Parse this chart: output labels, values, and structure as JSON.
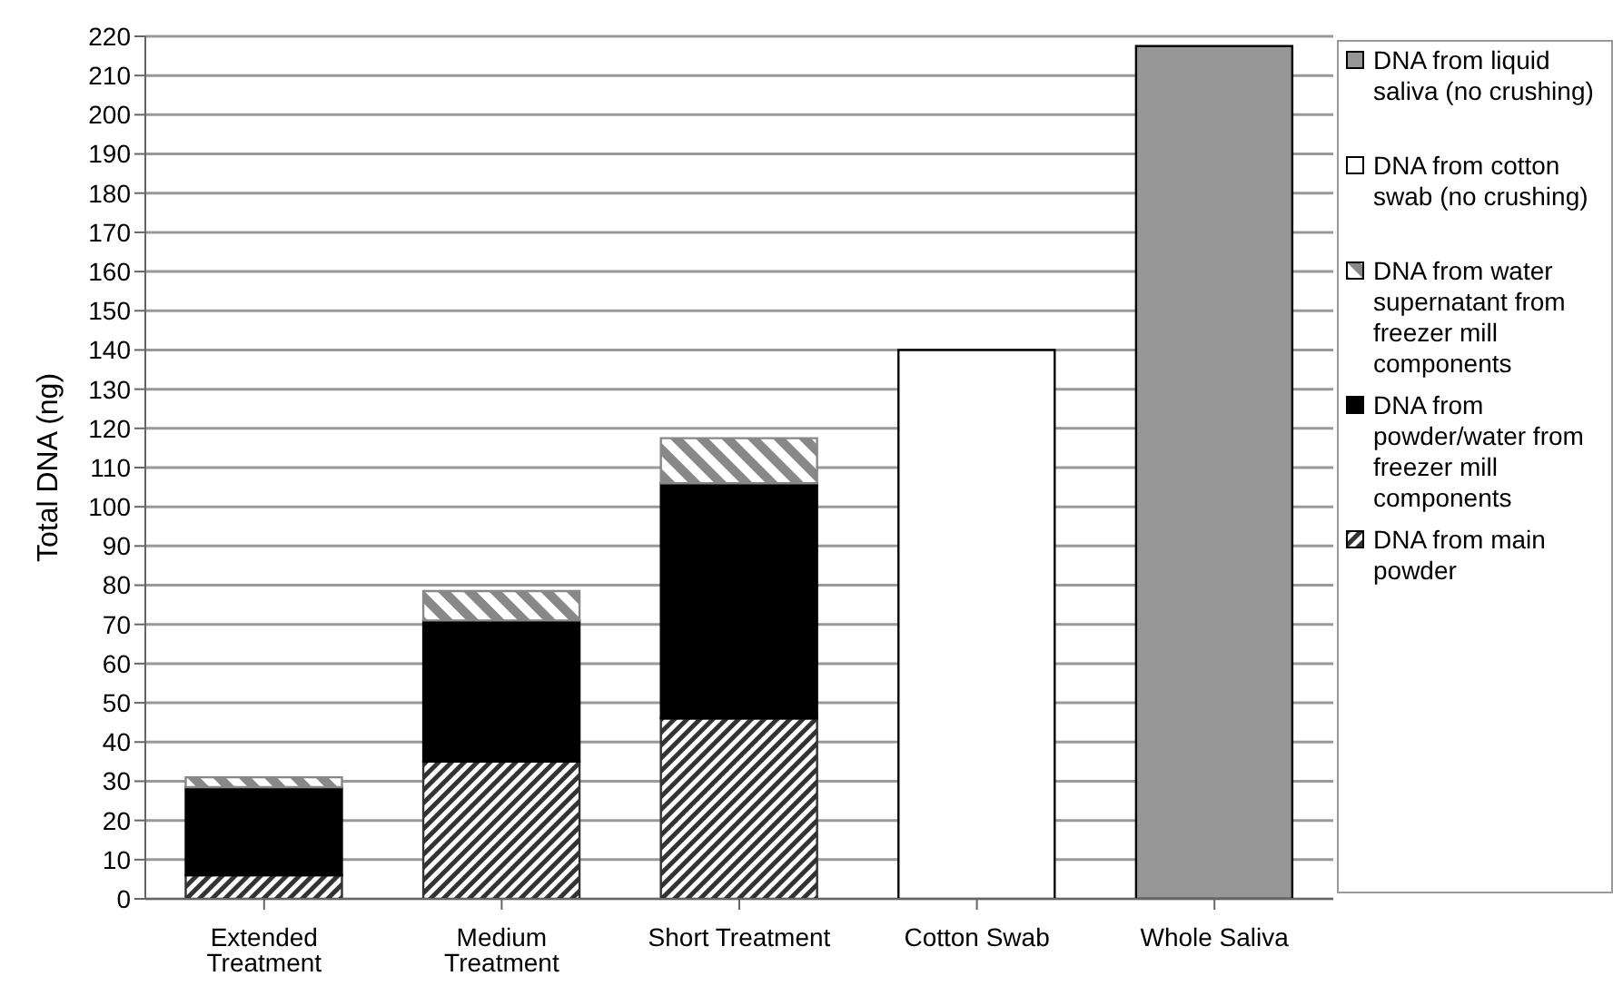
{
  "chart_data": {
    "type": "bar",
    "stacked": true,
    "ylabel": "Total DNA (ng)",
    "categories": [
      "Extended Treatment",
      "Medium Treatment",
      "Short Treatment",
      "Cotton Swab",
      "Whole Saliva"
    ],
    "series": [
      {
        "name": "DNA from main powder",
        "color": "#333333",
        "values": [
          6,
          35,
          46,
          null,
          null
        ]
      },
      {
        "name": "DNA from powder/water from freezer mill components",
        "color": "#000000",
        "values": [
          22.5,
          36,
          60,
          null,
          null
        ]
      },
      {
        "name": "DNA from water supernatant from freezer mill components",
        "color": "#888888",
        "values": [
          2.5,
          7.5,
          11.5,
          null,
          null
        ]
      },
      {
        "name": "DNA from cotton swab (no crushing)",
        "color": "#ffffff",
        "values": [
          null,
          null,
          null,
          140,
          null
        ]
      },
      {
        "name": "DNA from liquid saliva (no crushing)",
        "color": "#969696",
        "values": [
          null,
          null,
          null,
          null,
          217.5
        ]
      }
    ],
    "ylim": [
      0,
      220
    ],
    "yticks": [
      0,
      10,
      20,
      30,
      40,
      50,
      60,
      70,
      80,
      90,
      100,
      110,
      120,
      130,
      140,
      150,
      160,
      170,
      180,
      190,
      200,
      210,
      220
    ],
    "grid": "y",
    "legend": "right"
  }
}
